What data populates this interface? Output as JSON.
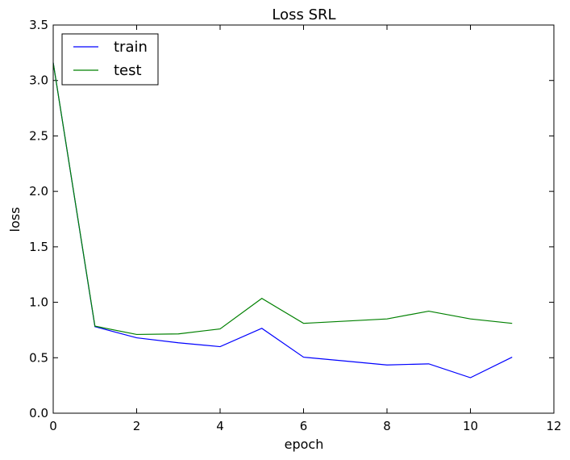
{
  "chart_data": {
    "type": "line",
    "title": "Loss SRL",
    "xlabel": "epoch",
    "ylabel": "loss",
    "xlim": [
      0,
      12
    ],
    "ylim": [
      0,
      3.5
    ],
    "x_ticks": [
      "0",
      "2",
      "4",
      "6",
      "8",
      "10",
      "12"
    ],
    "y_ticks": [
      "0.0",
      "0.5",
      "1.0",
      "1.5",
      "2.0",
      "2.5",
      "3.0",
      "3.5"
    ],
    "x": [
      0,
      1,
      2,
      3,
      4,
      5,
      6,
      7,
      8,
      9,
      10,
      11
    ],
    "series": [
      {
        "name": "train",
        "color": "#0000ff",
        "values": [
          3.16,
          0.78,
          0.68,
          0.635,
          0.6,
          0.765,
          0.505,
          0.47,
          0.435,
          0.445,
          0.32,
          0.505
        ]
      },
      {
        "name": "test",
        "color": "#008000",
        "values": [
          3.16,
          0.785,
          0.71,
          0.715,
          0.76,
          1.035,
          0.81,
          0.83,
          0.85,
          0.92,
          0.85,
          0.81
        ]
      }
    ],
    "grid": false,
    "legend_position": "top-left"
  }
}
